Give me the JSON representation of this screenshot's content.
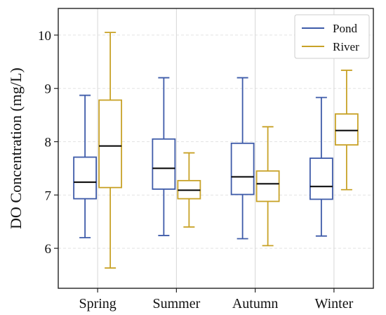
{
  "chart_data": {
    "type": "box",
    "title": "",
    "xlabel": "",
    "ylabel": "DO Concentration (mg/L)",
    "ylim": [
      5.25,
      10.5
    ],
    "yticks": [
      6,
      7,
      8,
      9,
      10
    ],
    "categories": [
      "Spring",
      "Summer",
      "Autumn",
      "Winter"
    ],
    "grid": "dashed horizontal and vertical",
    "legend_position": "top-right",
    "median_color": "#000000",
    "series": [
      {
        "name": "Pond",
        "color": "#3E5BA9",
        "boxes": [
          {
            "whislo": 6.2,
            "q1": 6.93,
            "med": 7.24,
            "q3": 7.71,
            "whishi": 8.87
          },
          {
            "whislo": 6.24,
            "q1": 7.11,
            "med": 7.5,
            "q3": 8.05,
            "whishi": 9.2
          },
          {
            "whislo": 6.18,
            "q1": 7.01,
            "med": 7.34,
            "q3": 7.97,
            "whishi": 9.2
          },
          {
            "whislo": 6.23,
            "q1": 6.92,
            "med": 7.16,
            "q3": 7.69,
            "whishi": 8.83
          }
        ]
      },
      {
        "name": "River",
        "color": "#C8A227",
        "boxes": [
          {
            "whislo": 5.63,
            "q1": 7.14,
            "med": 7.92,
            "q3": 8.78,
            "whishi": 10.05
          },
          {
            "whislo": 6.4,
            "q1": 6.93,
            "med": 7.09,
            "q3": 7.27,
            "whishi": 7.79
          },
          {
            "whislo": 6.05,
            "q1": 6.88,
            "med": 7.21,
            "q3": 7.45,
            "whishi": 8.28
          },
          {
            "whislo": 7.1,
            "q1": 7.94,
            "med": 8.21,
            "q3": 8.52,
            "whishi": 9.34
          }
        ]
      }
    ]
  }
}
